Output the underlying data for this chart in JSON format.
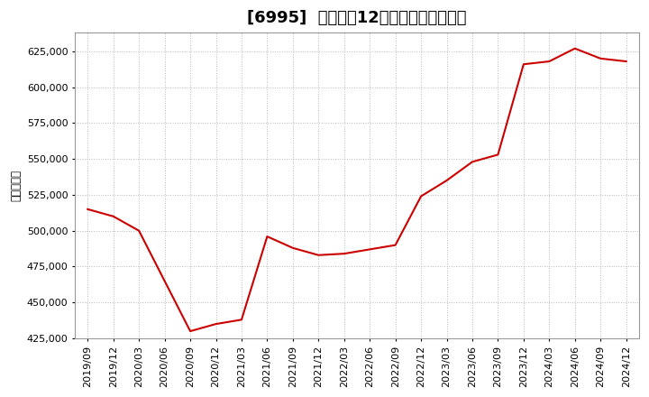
{
  "title": "[6995]  売上高の12か月移動合計の推移",
  "ylabel": "（百万円）",
  "line_color": "#cc0000",
  "bg_color": "#ffffff",
  "plot_bg_color": "#ffffff",
  "grid_color": "#bbbbbb",
  "ylim": [
    425000,
    638000
  ],
  "yticks": [
    425000,
    450000,
    475000,
    500000,
    525000,
    550000,
    575000,
    600000,
    625000
  ],
  "dates": [
    "2019/09",
    "2019/12",
    "2020/03",
    "2020/06",
    "2020/09",
    "2020/12",
    "2021/03",
    "2021/06",
    "2021/09",
    "2021/12",
    "2022/03",
    "2022/06",
    "2022/09",
    "2022/12",
    "2023/03",
    "2023/06",
    "2023/09",
    "2023/12",
    "2024/03",
    "2024/06",
    "2024/09",
    "2024/12"
  ],
  "values": [
    515000,
    510000,
    500000,
    465000,
    430000,
    435000,
    438000,
    496000,
    488000,
    483000,
    484000,
    487000,
    490000,
    524000,
    535000,
    548000,
    553000,
    616000,
    618000,
    627000,
    620000,
    618000
  ],
  "title_fontsize": 13,
  "label_fontsize": 8.5,
  "tick_fontsize": 8
}
